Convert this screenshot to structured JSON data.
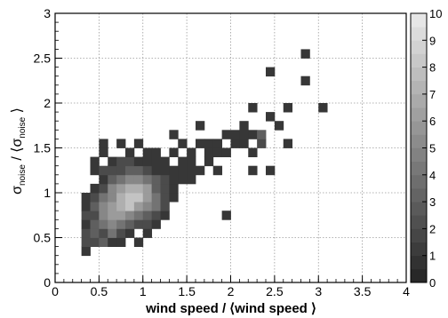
{
  "chart_data": {
    "type": "heatmap",
    "xlabel": "wind speed / ⟨wind speed ⟩",
    "ylabel": {
      "sym1": "σ",
      "sub1": "noise",
      "mid": " / ⟨σ",
      "sub2": "noise",
      "end": " ⟩"
    },
    "xlim": [
      0,
      4
    ],
    "ylim": [
      0,
      3
    ],
    "zlim": [
      0,
      10
    ],
    "x_ticks": [
      "0",
      "0.5",
      "1",
      "1.5",
      "2",
      "2.5",
      "3",
      "3.5",
      "4"
    ],
    "x_tick_values": [
      0,
      0.5,
      1,
      1.5,
      2,
      2.5,
      3,
      3.5,
      4
    ],
    "y_ticks": [
      "0",
      "0.5",
      "1",
      "1.5",
      "2",
      "2.5",
      "3"
    ],
    "y_tick_values": [
      0,
      0.5,
      1,
      1.5,
      2,
      2.5,
      3
    ],
    "colorbar_ticks": [
      "0",
      "1",
      "2",
      "3",
      "4",
      "5",
      "6",
      "7",
      "8",
      "9",
      "10"
    ],
    "grid": true,
    "bin_size": [
      0.1,
      0.1
    ],
    "cells": [
      {
        "x": 0.3,
        "y": 0.3,
        "z": 1
      },
      {
        "x": 0.3,
        "y": 0.4,
        "z": 2
      },
      {
        "x": 0.3,
        "y": 0.5,
        "z": 2
      },
      {
        "x": 0.3,
        "y": 0.6,
        "z": 1
      },
      {
        "x": 0.3,
        "y": 0.7,
        "z": 2
      },
      {
        "x": 0.3,
        "y": 0.8,
        "z": 1
      },
      {
        "x": 0.3,
        "y": 0.9,
        "z": 1
      },
      {
        "x": 0.4,
        "y": 0.4,
        "z": 2
      },
      {
        "x": 0.4,
        "y": 0.5,
        "z": 3
      },
      {
        "x": 0.4,
        "y": 0.6,
        "z": 3
      },
      {
        "x": 0.4,
        "y": 0.7,
        "z": 2
      },
      {
        "x": 0.4,
        "y": 0.8,
        "z": 3
      },
      {
        "x": 0.4,
        "y": 0.9,
        "z": 2
      },
      {
        "x": 0.4,
        "y": 1.0,
        "z": 1
      },
      {
        "x": 0.4,
        "y": 1.2,
        "z": 1
      },
      {
        "x": 0.4,
        "y": 1.3,
        "z": 1
      },
      {
        "x": 0.5,
        "y": 0.4,
        "z": 3
      },
      {
        "x": 0.5,
        "y": 0.5,
        "z": 2
      },
      {
        "x": 0.5,
        "y": 0.6,
        "z": 4
      },
      {
        "x": 0.5,
        "y": 0.7,
        "z": 5
      },
      {
        "x": 0.5,
        "y": 0.8,
        "z": 5
      },
      {
        "x": 0.5,
        "y": 0.9,
        "z": 4
      },
      {
        "x": 0.5,
        "y": 1.0,
        "z": 2
      },
      {
        "x": 0.5,
        "y": 1.1,
        "z": 1
      },
      {
        "x": 0.5,
        "y": 1.2,
        "z": 2
      },
      {
        "x": 0.5,
        "y": 1.4,
        "z": 1
      },
      {
        "x": 0.5,
        "y": 1.5,
        "z": 1
      },
      {
        "x": 0.6,
        "y": 0.4,
        "z": 1
      },
      {
        "x": 0.6,
        "y": 0.5,
        "z": 4
      },
      {
        "x": 0.6,
        "y": 0.6,
        "z": 5
      },
      {
        "x": 0.6,
        "y": 0.7,
        "z": 6
      },
      {
        "x": 0.6,
        "y": 0.8,
        "z": 6
      },
      {
        "x": 0.6,
        "y": 0.9,
        "z": 5
      },
      {
        "x": 0.6,
        "y": 1.0,
        "z": 5
      },
      {
        "x": 0.6,
        "y": 1.1,
        "z": 3
      },
      {
        "x": 0.6,
        "y": 1.2,
        "z": 2
      },
      {
        "x": 0.6,
        "y": 1.3,
        "z": 1
      },
      {
        "x": 0.7,
        "y": 0.4,
        "z": 1
      },
      {
        "x": 0.7,
        "y": 0.5,
        "z": 2
      },
      {
        "x": 0.7,
        "y": 0.6,
        "z": 4
      },
      {
        "x": 0.7,
        "y": 0.7,
        "z": 6
      },
      {
        "x": 0.7,
        "y": 0.8,
        "z": 7
      },
      {
        "x": 0.7,
        "y": 0.9,
        "z": 7
      },
      {
        "x": 0.7,
        "y": 1.0,
        "z": 6
      },
      {
        "x": 0.7,
        "y": 1.1,
        "z": 4
      },
      {
        "x": 0.7,
        "y": 1.2,
        "z": 2
      },
      {
        "x": 0.7,
        "y": 1.3,
        "z": 2
      },
      {
        "x": 0.7,
        "y": 1.5,
        "z": 1
      },
      {
        "x": 0.8,
        "y": 0.5,
        "z": 1
      },
      {
        "x": 0.8,
        "y": 0.6,
        "z": 3
      },
      {
        "x": 0.8,
        "y": 0.7,
        "z": 5
      },
      {
        "x": 0.8,
        "y": 0.8,
        "z": 8
      },
      {
        "x": 0.8,
        "y": 0.9,
        "z": 8
      },
      {
        "x": 0.8,
        "y": 1.0,
        "z": 7
      },
      {
        "x": 0.8,
        "y": 1.1,
        "z": 5
      },
      {
        "x": 0.8,
        "y": 1.2,
        "z": 3
      },
      {
        "x": 0.8,
        "y": 1.3,
        "z": 2
      },
      {
        "x": 0.8,
        "y": 1.4,
        "z": 1
      },
      {
        "x": 0.9,
        "y": 0.4,
        "z": 1
      },
      {
        "x": 0.9,
        "y": 0.6,
        "z": 2
      },
      {
        "x": 0.9,
        "y": 0.7,
        "z": 4
      },
      {
        "x": 0.9,
        "y": 0.8,
        "z": 6
      },
      {
        "x": 0.9,
        "y": 0.9,
        "z": 8
      },
      {
        "x": 0.9,
        "y": 1.0,
        "z": 7
      },
      {
        "x": 0.9,
        "y": 1.1,
        "z": 5
      },
      {
        "x": 0.9,
        "y": 1.2,
        "z": 3
      },
      {
        "x": 0.9,
        "y": 1.3,
        "z": 1
      },
      {
        "x": 0.9,
        "y": 1.5,
        "z": 1
      },
      {
        "x": 1.0,
        "y": 0.5,
        "z": 1
      },
      {
        "x": 1.0,
        "y": 0.6,
        "z": 2
      },
      {
        "x": 1.0,
        "y": 0.7,
        "z": 3
      },
      {
        "x": 1.0,
        "y": 0.8,
        "z": 5
      },
      {
        "x": 1.0,
        "y": 0.9,
        "z": 6
      },
      {
        "x": 1.0,
        "y": 1.0,
        "z": 6
      },
      {
        "x": 1.0,
        "y": 1.1,
        "z": 4
      },
      {
        "x": 1.0,
        "y": 1.2,
        "z": 2
      },
      {
        "x": 1.0,
        "y": 1.3,
        "z": 1
      },
      {
        "x": 1.0,
        "y": 1.4,
        "z": 1
      },
      {
        "x": 1.1,
        "y": 0.6,
        "z": 1
      },
      {
        "x": 1.1,
        "y": 0.7,
        "z": 2
      },
      {
        "x": 1.1,
        "y": 0.8,
        "z": 4
      },
      {
        "x": 1.1,
        "y": 0.9,
        "z": 4
      },
      {
        "x": 1.1,
        "y": 1.0,
        "z": 3
      },
      {
        "x": 1.1,
        "y": 1.1,
        "z": 3
      },
      {
        "x": 1.1,
        "y": 1.2,
        "z": 1
      },
      {
        "x": 1.1,
        "y": 1.3,
        "z": 1
      },
      {
        "x": 1.1,
        "y": 1.4,
        "z": 1
      },
      {
        "x": 1.2,
        "y": 0.7,
        "z": 1
      },
      {
        "x": 1.2,
        "y": 0.8,
        "z": 2
      },
      {
        "x": 1.2,
        "y": 0.9,
        "z": 2
      },
      {
        "x": 1.2,
        "y": 1.0,
        "z": 2
      },
      {
        "x": 1.2,
        "y": 1.1,
        "z": 2
      },
      {
        "x": 1.2,
        "y": 1.2,
        "z": 1
      },
      {
        "x": 1.2,
        "y": 1.3,
        "z": 1
      },
      {
        "x": 1.3,
        "y": 0.9,
        "z": 1
      },
      {
        "x": 1.3,
        "y": 1.0,
        "z": 1
      },
      {
        "x": 1.3,
        "y": 1.1,
        "z": 1
      },
      {
        "x": 1.3,
        "y": 1.2,
        "z": 1
      },
      {
        "x": 1.3,
        "y": 1.4,
        "z": 1
      },
      {
        "x": 1.3,
        "y": 1.6,
        "z": 1
      },
      {
        "x": 1.4,
        "y": 1.1,
        "z": 1
      },
      {
        "x": 1.4,
        "y": 1.2,
        "z": 1
      },
      {
        "x": 1.4,
        "y": 1.3,
        "z": 1
      },
      {
        "x": 1.4,
        "y": 1.5,
        "z": 1
      },
      {
        "x": 1.5,
        "y": 1.1,
        "z": 1
      },
      {
        "x": 1.5,
        "y": 1.2,
        "z": 1
      },
      {
        "x": 1.5,
        "y": 1.3,
        "z": 1
      },
      {
        "x": 1.5,
        "y": 1.4,
        "z": 1
      },
      {
        "x": 1.6,
        "y": 1.2,
        "z": 1
      },
      {
        "x": 1.6,
        "y": 1.5,
        "z": 1
      },
      {
        "x": 1.6,
        "y": 1.7,
        "z": 1
      },
      {
        "x": 1.7,
        "y": 1.3,
        "z": 1
      },
      {
        "x": 1.7,
        "y": 1.4,
        "z": 1
      },
      {
        "x": 1.7,
        "y": 1.5,
        "z": 1
      },
      {
        "x": 1.8,
        "y": 1.2,
        "z": 1
      },
      {
        "x": 1.8,
        "y": 1.4,
        "z": 1
      },
      {
        "x": 1.8,
        "y": 1.5,
        "z": 1
      },
      {
        "x": 1.9,
        "y": 1.4,
        "z": 1
      },
      {
        "x": 1.9,
        "y": 1.6,
        "z": 1
      },
      {
        "x": 1.9,
        "y": 0.7,
        "z": 1
      },
      {
        "x": 2.0,
        "y": 1.5,
        "z": 1
      },
      {
        "x": 2.0,
        "y": 1.6,
        "z": 1
      },
      {
        "x": 2.1,
        "y": 1.5,
        "z": 1
      },
      {
        "x": 2.1,
        "y": 1.6,
        "z": 1
      },
      {
        "x": 2.1,
        "y": 1.7,
        "z": 1
      },
      {
        "x": 2.2,
        "y": 1.4,
        "z": 1
      },
      {
        "x": 2.2,
        "y": 1.6,
        "z": 1
      },
      {
        "x": 2.2,
        "y": 1.9,
        "z": 1
      },
      {
        "x": 2.2,
        "y": 1.2,
        "z": 1
      },
      {
        "x": 2.3,
        "y": 1.5,
        "z": 2
      },
      {
        "x": 2.3,
        "y": 1.6,
        "z": 3
      },
      {
        "x": 2.4,
        "y": 1.2,
        "z": 1
      },
      {
        "x": 2.4,
        "y": 1.8,
        "z": 1
      },
      {
        "x": 2.4,
        "y": 2.3,
        "z": 1
      },
      {
        "x": 2.5,
        "y": 1.7,
        "z": 1
      },
      {
        "x": 2.6,
        "y": 1.9,
        "z": 1
      },
      {
        "x": 2.6,
        "y": 1.5,
        "z": 1
      },
      {
        "x": 2.8,
        "y": 2.2,
        "z": 1
      },
      {
        "x": 2.8,
        "y": 2.5,
        "z": 1
      },
      {
        "x": 3.0,
        "y": 1.9,
        "z": 1
      }
    ]
  }
}
